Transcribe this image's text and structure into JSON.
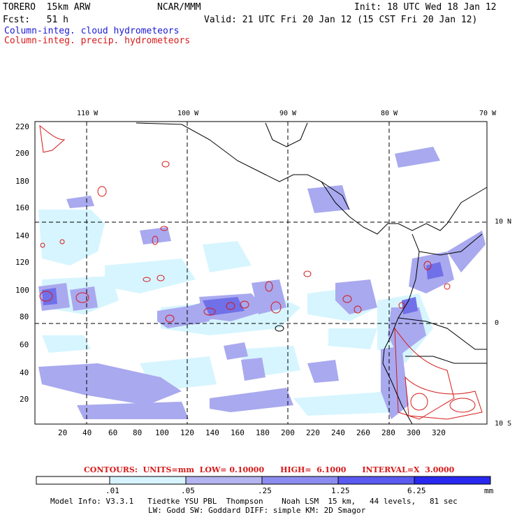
{
  "header": {
    "model": "TORERO  15km ARW",
    "org": "NCAR/MMM",
    "init": "Init: 18 UTC Wed 18 Jan 12",
    "fcst": "Fcst:   51 h",
    "valid": "Valid: 21 UTC Fri 20 Jan 12 (15 CST Fri 20 Jan 12)",
    "field1": "Column-integ. cloud hydrometeors",
    "field2": "Column-integ. precip. hydrometeors",
    "field1_color": "#1a1ad6",
    "field2_color": "#d61a1a"
  },
  "map": {
    "lon_labels": [
      "110 W",
      "100 W",
      "90 W",
      "80 W",
      "70 W"
    ],
    "lat_labels": [
      "10 N",
      "0",
      "10 S"
    ],
    "x_ticks": [
      "20",
      "40",
      "60",
      "80",
      "100",
      "120",
      "140",
      "160",
      "180",
      "200",
      "220",
      "240",
      "260",
      "280",
      "300",
      "320"
    ],
    "y_ticks": [
      "20",
      "40",
      "60",
      "80",
      "100",
      "120",
      "140",
      "160",
      "180",
      "200",
      "220"
    ]
  },
  "contour_info": "CONTOURS:  UNITS=mm  LOW= 0.10000      HIGH=  6.1000      INTERVAL=X  3.0000",
  "colorbar": {
    "labels": [
      ".01",
      ".05",
      ".25",
      "1.25",
      "6.25"
    ],
    "unit": "mm",
    "colors": [
      "#ffffff",
      "#d6f5ff",
      "#b4b4f0",
      "#8c8cf0",
      "#5a5af0",
      "#2828f0"
    ]
  },
  "model_info": {
    "line1": "Model Info: V3.3.1   Tiedtke YSU PBL  Thompson    Noah LSM  15 km,   44 levels,   81 sec",
    "line2": "LW: Godd SW: Goddard DIFF: simple KM: 2D Smagor"
  }
}
